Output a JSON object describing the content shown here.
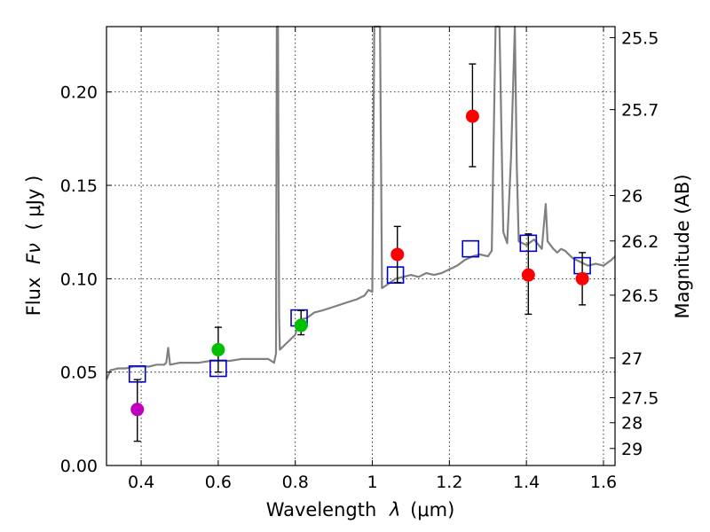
{
  "chart_data": {
    "type": "scatter",
    "title": "",
    "xlabel": "Wavelength",
    "xlabel_symbol": "λ",
    "xlabel_unit": "(μm)",
    "ylabel": "Flux",
    "ylabel_symbol": "Fν",
    "ylabel_unit": "( μJy )",
    "ylabel_right": "Magnitude (AB)",
    "xlim": [
      0.31,
      1.63
    ],
    "ylim": [
      0.0,
      0.235
    ],
    "grid": true,
    "x_ticks": [
      0.4,
      0.6,
      0.8,
      1.0,
      1.2,
      1.4,
      1.6
    ],
    "x_tick_labels": [
      "0.4",
      "0.6",
      "0.8",
      "1",
      "1.2",
      "1.4",
      "1.6"
    ],
    "y_ticks": [
      0.0,
      0.05,
      0.1,
      0.15,
      0.2
    ],
    "y_tick_labels": [
      "0.00",
      "0.05",
      "0.10",
      "0.15",
      "0.20"
    ],
    "mag_ticks": [
      "25.5",
      "25.7",
      "26",
      "26.2",
      "26.5",
      "27",
      "27.5",
      "28",
      "29"
    ],
    "observed": [
      {
        "x": 0.39,
        "y": 0.03,
        "err_lo": 0.017,
        "err_hi": 0.016,
        "color": "#bf00bf"
      },
      {
        "x": 0.6,
        "y": 0.062,
        "err_lo": 0.012,
        "err_hi": 0.012,
        "color": "#00c000"
      },
      {
        "x": 0.815,
        "y": 0.075,
        "err_lo": 0.005,
        "err_hi": 0.008,
        "color": "#00c000"
      },
      {
        "x": 1.065,
        "y": 0.113,
        "err_lo": 0.015,
        "err_hi": 0.015,
        "color": "#ff0000"
      },
      {
        "x": 1.26,
        "y": 0.187,
        "err_lo": 0.027,
        "err_hi": 0.028,
        "color": "#ff0000"
      },
      {
        "x": 1.405,
        "y": 0.102,
        "err_lo": 0.021,
        "err_hi": 0.022,
        "color": "#ff0000"
      },
      {
        "x": 1.545,
        "y": 0.1,
        "err_lo": 0.014,
        "err_hi": 0.014,
        "color": "#ff0000"
      }
    ],
    "model_photometry": {
      "color": "#0000cc",
      "points": [
        [
          0.39,
          0.049
        ],
        [
          0.6,
          0.052
        ],
        [
          0.81,
          0.079
        ],
        [
          1.06,
          0.102
        ],
        [
          1.255,
          0.116
        ],
        [
          1.405,
          0.119
        ],
        [
          1.545,
          0.107
        ]
      ]
    },
    "model_spectrum": {
      "color": "#808080",
      "points": [
        [
          0.31,
          0.046
        ],
        [
          0.32,
          0.051
        ],
        [
          0.34,
          0.052
        ],
        [
          0.36,
          0.052
        ],
        [
          0.38,
          0.053
        ],
        [
          0.4,
          0.053
        ],
        [
          0.42,
          0.053
        ],
        [
          0.44,
          0.054
        ],
        [
          0.46,
          0.054
        ],
        [
          0.465,
          0.055
        ],
        [
          0.47,
          0.063
        ],
        [
          0.475,
          0.054
        ],
        [
          0.5,
          0.055
        ],
        [
          0.52,
          0.055
        ],
        [
          0.55,
          0.055
        ],
        [
          0.58,
          0.056
        ],
        [
          0.6,
          0.056
        ],
        [
          0.63,
          0.056
        ],
        [
          0.66,
          0.057
        ],
        [
          0.7,
          0.057
        ],
        [
          0.73,
          0.057
        ],
        [
          0.745,
          0.055
        ],
        [
          0.75,
          0.06
        ],
        [
          0.752,
          0.24
        ],
        [
          0.755,
          0.24
        ],
        [
          0.758,
          0.08
        ],
        [
          0.76,
          0.062
        ],
        [
          0.78,
          0.066
        ],
        [
          0.8,
          0.07
        ],
        [
          0.81,
          0.078
        ],
        [
          0.83,
          0.079
        ],
        [
          0.85,
          0.082
        ],
        [
          0.87,
          0.083
        ],
        [
          0.9,
          0.085
        ],
        [
          0.93,
          0.087
        ],
        [
          0.96,
          0.089
        ],
        [
          0.98,
          0.091
        ],
        [
          0.99,
          0.094
        ],
        [
          1.0,
          0.093
        ],
        [
          1.005,
          0.24
        ],
        [
          1.015,
          0.24
        ],
        [
          1.02,
          0.24
        ],
        [
          1.025,
          0.095
        ],
        [
          1.04,
          0.097
        ],
        [
          1.06,
          0.1
        ],
        [
          1.08,
          0.101
        ],
        [
          1.1,
          0.102
        ],
        [
          1.12,
          0.101
        ],
        [
          1.14,
          0.103
        ],
        [
          1.16,
          0.102
        ],
        [
          1.18,
          0.103
        ],
        [
          1.2,
          0.105
        ],
        [
          1.22,
          0.107
        ],
        [
          1.24,
          0.11
        ],
        [
          1.26,
          0.112
        ],
        [
          1.28,
          0.113
        ],
        [
          1.3,
          0.112
        ],
        [
          1.31,
          0.115
        ],
        [
          1.32,
          0.24
        ],
        [
          1.33,
          0.24
        ],
        [
          1.34,
          0.125
        ],
        [
          1.35,
          0.119
        ],
        [
          1.36,
          0.165
        ],
        [
          1.37,
          0.24
        ],
        [
          1.375,
          0.16
        ],
        [
          1.38,
          0.12
        ],
        [
          1.4,
          0.118
        ],
        [
          1.42,
          0.121
        ],
        [
          1.44,
          0.116
        ],
        [
          1.45,
          0.14
        ],
        [
          1.455,
          0.12
        ],
        [
          1.47,
          0.116
        ],
        [
          1.48,
          0.114
        ],
        [
          1.49,
          0.116
        ],
        [
          1.5,
          0.115
        ],
        [
          1.52,
          0.111
        ],
        [
          1.54,
          0.109
        ],
        [
          1.56,
          0.107
        ],
        [
          1.58,
          0.108
        ],
        [
          1.6,
          0.107
        ],
        [
          1.62,
          0.11
        ],
        [
          1.63,
          0.112
        ]
      ]
    }
  }
}
